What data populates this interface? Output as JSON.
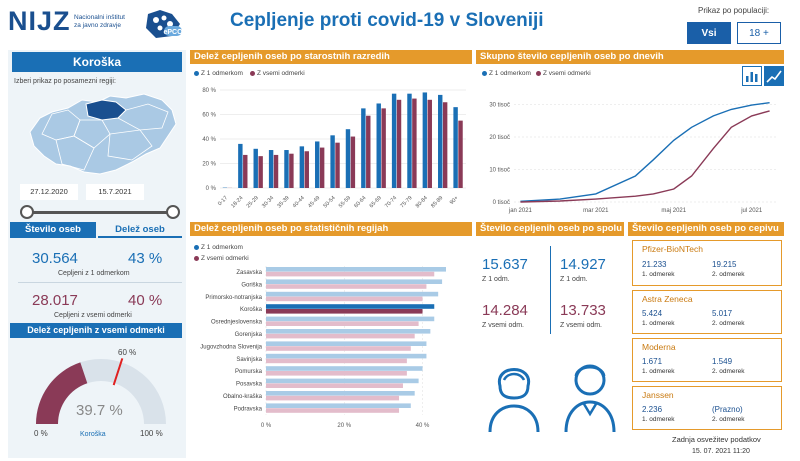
{
  "header": {
    "logo": "NIJZ",
    "logo_sub1": "Nacionalni inštitut",
    "logo_sub2": "za javno zdravje",
    "title": "Cepljenje proti covid-19 v Sloveniji",
    "population_label": "Prikaz po populaciji:",
    "btn_all": "Vsi",
    "btn_18": "18 +"
  },
  "left": {
    "region": "Koroška",
    "region_prompt": "Izberi prikaz po posamezni regiji:",
    "date_from": "27.12.2020",
    "date_to": "15.7.2021",
    "tab_count": "Število oseb",
    "tab_share": "Delež oseb",
    "dose1_count": "30.564",
    "dose1_share": "43 %",
    "dose1_label": "Cepljeni z 1 odmerkom",
    "full_count": "28.017",
    "full_share": "40 %",
    "full_label": "Cepljeni z vsemi odmerki",
    "gauge_header": "Delež cepljenih z vsemi odmerki",
    "gauge_value": "39.7 %",
    "gauge_target": "60 %",
    "gauge_min": "0 %",
    "gauge_max": "100 %",
    "gauge_region": "Koroška",
    "colors": {
      "primary": "#1a6fb5",
      "secondary": "#8a3a57",
      "accent": "#e59a2b"
    }
  },
  "age_chart": {
    "header": "Delež cepljenih oseb po starostnih razredih",
    "legend1": "Z 1 odmerkom",
    "legend2": "Z vsemi odmerki",
    "yticks": [
      "80 %",
      "60 %",
      "40 %",
      "20 %",
      "0 %"
    ],
    "chart_data": {
      "type": "bar",
      "categories": [
        "0-17",
        "18-24",
        "25-29",
        "30-34",
        "35-39",
        "40-44",
        "45-49",
        "50-54",
        "55-59",
        "60-64",
        "65-69",
        "70-74",
        "75-79",
        "80-84",
        "85-89",
        "90+"
      ],
      "series": [
        {
          "name": "Z 1 odmerkom",
          "values": [
            0.3,
            36,
            32,
            31,
            31,
            34,
            38,
            43,
            48,
            65,
            69,
            77,
            77,
            78,
            76,
            66
          ]
        },
        {
          "name": "Z vsemi odmerki",
          "values": [
            0.1,
            27,
            26,
            27,
            28,
            30,
            33,
            37,
            42,
            59,
            65,
            72,
            73,
            72,
            70,
            55
          ]
        }
      ],
      "ylim": [
        0,
        80
      ]
    }
  },
  "time_chart": {
    "header": "Skupno število cepljenih oseb po dnevih",
    "legend1": "Z 1 odmerkom",
    "legend2": "Z vsemi odmerki",
    "yticks": [
      "30 tisoč",
      "20 tisoč",
      "10 tisoč",
      "0 tisoč"
    ],
    "xticks": [
      "jan 2021",
      "mar 2021",
      "maj 2021",
      "jul 2021"
    ],
    "chart_data": {
      "type": "line",
      "x": [
        "2021-01-01",
        "2021-02-01",
        "2021-03-01",
        "2021-04-01",
        "2021-04-15",
        "2021-05-01",
        "2021-05-15",
        "2021-06-01",
        "2021-06-15",
        "2021-07-01",
        "2021-07-15"
      ],
      "series": [
        {
          "name": "Z 1 odmerkom",
          "values": [
            200,
            900,
            2500,
            8000,
            13000,
            19000,
            23000,
            26500,
            28500,
            29800,
            30564
          ]
        },
        {
          "name": "Z vsemi odmerki",
          "values": [
            0,
            300,
            900,
            1800,
            2500,
            4000,
            8000,
            16500,
            23000,
            26500,
            28017
          ]
        }
      ],
      "ylim": [
        0,
        32000
      ]
    }
  },
  "region_chart": {
    "header": "Delež cepljenih oseb po statističnih regijah",
    "legend1": "Z 1 odmerkom",
    "legend2": "Z vsemi odmerki",
    "xticks": [
      "0 %",
      "20 %",
      "40 %"
    ],
    "chart_data": {
      "type": "bar",
      "categories": [
        "Zasavska",
        "Goriška",
        "Primorsko-notranjska",
        "Koroška",
        "Osrednjeslovenska",
        "Gorenjska",
        "Jugovzhodna Slovenija",
        "Savinjska",
        "Pomurska",
        "Posavska",
        "Obalno-kraška",
        "Podravska"
      ],
      "series": [
        {
          "name": "Z 1 odmerkom",
          "values": [
            46,
            45,
            44,
            43,
            43,
            42,
            41,
            41,
            40,
            39,
            38,
            37
          ]
        },
        {
          "name": "Z vsemi odmerki",
          "values": [
            43,
            41,
            40,
            40,
            39,
            38,
            37,
            36,
            36,
            35,
            34,
            34
          ]
        }
      ],
      "xlim": [
        0,
        46
      ]
    }
  },
  "gender": {
    "header": "Število cepljenih oseb po spolu",
    "female_dose1": "15.637",
    "female_dose1_label": "Z 1 odm.",
    "female_full": "14.284",
    "female_full_label": "Z vsemi odm.",
    "male_dose1": "14.927",
    "male_dose1_label": "Z 1 odm.",
    "male_full": "13.733",
    "male_full_label": "Z vsemi odm."
  },
  "vaccines": {
    "header": "Število cepljenih oseb po cepivu",
    "items": [
      {
        "name": "Pfizer-BioNTech",
        "v1": "21.233",
        "l1": "1. odmerek",
        "v2": "19.215",
        "l2": "2. odmerek"
      },
      {
        "name": "Astra Zeneca",
        "v1": "5.424",
        "l1": "1. odmerek",
        "v2": "5.017",
        "l2": "2. odmerek"
      },
      {
        "name": "Moderna",
        "v1": "1.671",
        "l1": "1. odmerek",
        "v2": "1.549",
        "l2": "2. odmerek"
      },
      {
        "name": "Janssen",
        "v1": "2.236",
        "l1": "1. odmerek",
        "v2": "(Prazno)",
        "l2": "2. odmerek"
      }
    ]
  },
  "footer": {
    "updated_label": "Zadnja osvežitev podatkov",
    "updated_value": "15. 07. 2021 11:20"
  }
}
